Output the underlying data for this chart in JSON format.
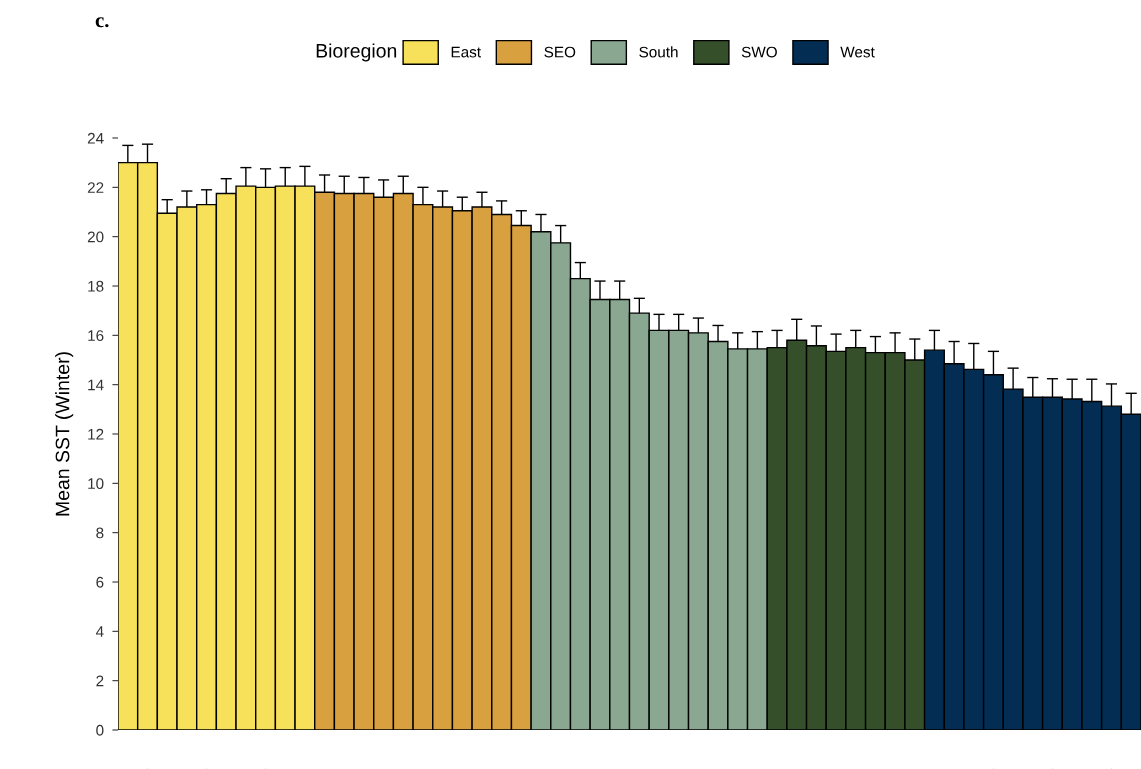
{
  "chart_data": {
    "type": "bar",
    "title": "c.",
    "ylabel": "Mean SST (Winter)",
    "legend_title": "Bioregion",
    "grid": false,
    "annotations": [
      "East",
      "SEO",
      "South",
      "SWO",
      "West"
    ],
    "categories": [
      null,
      null,
      null,
      null,
      null,
      null,
      null,
      null,
      null,
      null,
      null,
      null,
      null,
      null,
      null,
      null,
      null,
      null,
      null,
      null,
      null,
      null,
      null,
      null,
      null,
      null,
      null,
      null,
      null,
      null,
      null,
      null,
      null,
      null,
      null,
      null,
      null,
      null,
      null,
      null,
      null,
      null,
      null,
      null,
      null,
      null,
      null,
      null,
      null,
      null,
      null,
      null
    ],
    "ylim": [
      0,
      24
    ],
    "yticks": [
      0,
      2,
      4,
      6,
      8,
      10,
      12,
      14,
      16,
      18,
      20,
      22,
      24
    ],
    "series": [
      {
        "values": [
          23.0,
          23.0,
          20.95,
          21.2,
          21.3,
          21.75,
          22.05,
          22.0,
          22.05,
          22.05,
          21.8,
          21.75,
          21.75,
          21.6,
          21.75,
          21.3,
          21.2,
          21.05,
          21.2,
          20.9,
          20.45,
          20.2,
          19.75,
          18.3,
          17.45,
          17.45,
          16.9,
          16.2,
          16.2,
          16.1,
          15.75,
          15.45,
          15.45,
          15.5,
          15.8,
          15.58,
          15.35,
          15.5,
          15.3,
          15.3,
          15.0,
          15.4,
          14.85,
          14.62,
          14.4,
          13.82,
          13.49,
          13.49,
          13.42,
          13.32,
          13.13,
          12.8
        ],
        "errors": [
          0.7,
          0.75,
          0.55,
          0.65,
          0.6,
          0.6,
          0.75,
          0.75,
          0.75,
          0.8,
          0.7,
          0.7,
          0.65,
          0.7,
          0.7,
          0.7,
          0.65,
          0.55,
          0.6,
          0.55,
          0.6,
          0.7,
          0.7,
          0.65,
          0.75,
          0.75,
          0.6,
          0.65,
          0.65,
          0.6,
          0.65,
          0.65,
          0.7,
          0.7,
          0.85,
          0.8,
          0.7,
          0.7,
          0.65,
          0.8,
          0.85,
          0.8,
          0.9,
          1.05,
          0.95,
          0.85,
          0.8,
          0.75,
          0.8,
          0.9,
          0.9,
          0.85
        ],
        "colors": [
          "#f7e05a",
          "#f7e05a",
          "#f7e05a",
          "#f7e05a",
          "#f7e05a",
          "#f7e05a",
          "#f7e05a",
          "#f7e05a",
          "#f7e05a",
          "#f7e05a",
          "#d9a03f",
          "#d9a03f",
          "#d9a03f",
          "#d9a03f",
          "#d9a03f",
          "#d9a03f",
          "#d9a03f",
          "#d9a03f",
          "#d9a03f",
          "#d9a03f",
          "#d9a03f",
          "#8aa891",
          "#8aa891",
          "#8aa891",
          "#8aa891",
          "#8aa891",
          "#8aa891",
          "#8aa891",
          "#8aa891",
          "#8aa891",
          "#8aa891",
          "#8aa891",
          "#8aa891",
          "#344f29",
          "#344f29",
          "#344f29",
          "#344f29",
          "#344f29",
          "#344f29",
          "#344f29",
          "#344f29",
          "#032d52",
          "#032d52",
          "#032d52",
          "#032d52",
          "#032d52",
          "#032d52",
          "#032d52",
          "#032d52",
          "#032d52",
          "#032d52",
          "#032d52"
        ]
      }
    ]
  }
}
